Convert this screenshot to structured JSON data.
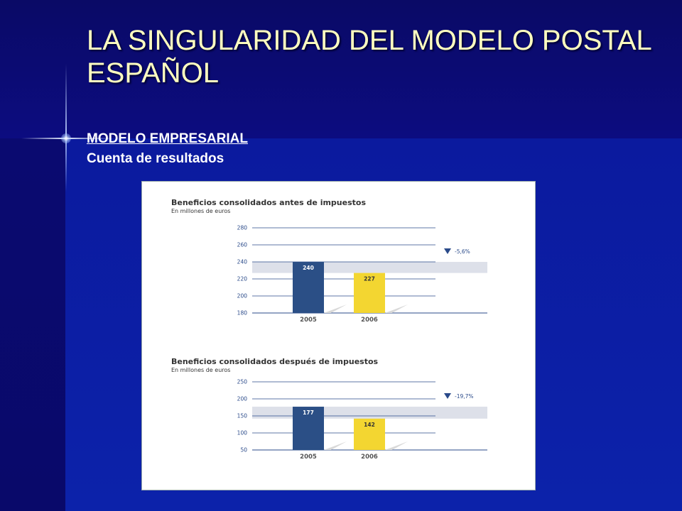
{
  "slide": {
    "title": "LA SINGULARIDAD DEL MODELO POSTAL ESPAÑOL",
    "subtitle": "MODELO EMPRESARIAL",
    "section": "Cuenta de resultados"
  },
  "colors": {
    "bar_2005": "#2b4f86",
    "bar_2006": "#f3d631",
    "band": "#dde0e9",
    "grid": "#2a4a8a"
  },
  "chart_data": [
    {
      "type": "bar",
      "title": "Beneficios consolidados antes de impuestos",
      "subtitle": "En millones de euros",
      "categories": [
        "2005",
        "2006"
      ],
      "values": [
        240,
        227
      ],
      "value_labels": [
        "240",
        "227"
      ],
      "ylim": [
        180,
        280
      ],
      "yticks": [
        180,
        200,
        220,
        240,
        260,
        280
      ],
      "change_label": "-5,6%",
      "grid": true
    },
    {
      "type": "bar",
      "title": "Beneficios consolidados después de impuestos",
      "subtitle": "En millones de euros",
      "categories": [
        "2005",
        "2006"
      ],
      "values": [
        177,
        142
      ],
      "value_labels": [
        "177",
        "142"
      ],
      "ylim": [
        50,
        250
      ],
      "yticks": [
        50,
        100,
        150,
        200,
        250
      ],
      "change_label": "-19,7%",
      "grid": true
    }
  ]
}
